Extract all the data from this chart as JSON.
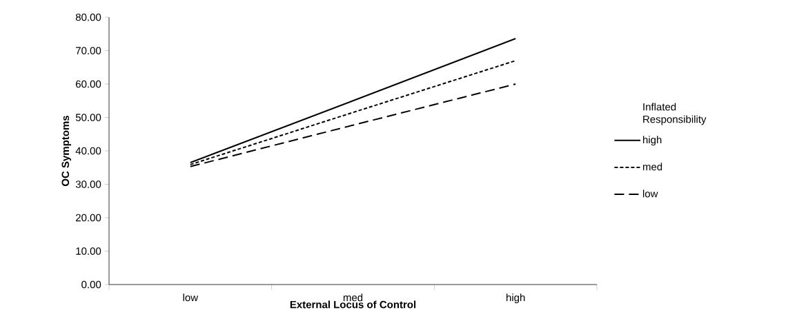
{
  "chart_data": {
    "type": "line",
    "xlabel": "External Locus of Control",
    "ylabel": "OC Symptoms",
    "legend_title": "Inflated Responsibility",
    "categories": [
      "low",
      "med",
      "high"
    ],
    "series": [
      {
        "name": "high",
        "color": "#000000",
        "line_style": "solid",
        "values": [
          36.5,
          55.0,
          73.6
        ]
      },
      {
        "name": "med",
        "color": "#000000",
        "line_style": "dotted",
        "values": [
          35.9,
          51.5,
          67.0
        ]
      },
      {
        "name": "low",
        "color": "#000000",
        "line_style": "dashed",
        "values": [
          35.3,
          47.7,
          60.0
        ]
      }
    ],
    "ylim": [
      0,
      80
    ],
    "yticks": [
      {
        "value": 0,
        "label": "0.00"
      },
      {
        "value": 10,
        "label": "10.00"
      },
      {
        "value": 20,
        "label": "20.00"
      },
      {
        "value": 30,
        "label": "30.00"
      },
      {
        "value": 40,
        "label": "40.00"
      },
      {
        "value": 50,
        "label": "50.00"
      },
      {
        "value": 60,
        "label": "60.00"
      },
      {
        "value": 70,
        "label": "70.00"
      },
      {
        "value": 80,
        "label": "80.00"
      }
    ],
    "grid": false,
    "legend": "right",
    "marker": "none"
  }
}
